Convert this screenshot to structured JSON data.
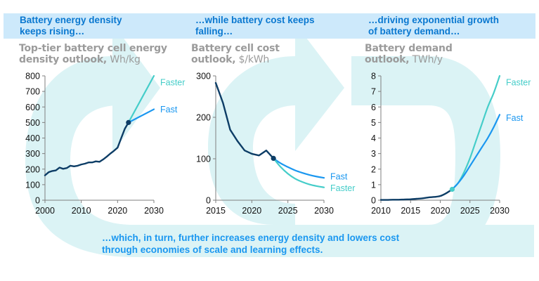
{
  "colors": {
    "banner_bg": "#cde9fb",
    "banner_text": "#0a78d0",
    "subtitle_text": "#9b9b9b",
    "historical_line": "#0d3d66",
    "fast_line": "#1a97f0",
    "faster_line": "#45cdc9",
    "swoosh": "#dbf3f5",
    "footer_text": "#1a97f0"
  },
  "banners": [
    {
      "line1": "Battery energy density",
      "line2": "keeps rising…"
    },
    {
      "line1": "…while battery cost keeps",
      "line2": "falling…"
    },
    {
      "line1": "…driving exponential growth",
      "line2": "of battery demand…"
    }
  ],
  "subtitles": [
    {
      "line1": "Top-tier battery cell energy",
      "line2_bold": "density outlook,",
      "unit": " Wh/kg"
    },
    {
      "line1": "Battery cell cost",
      "line2_bold": "outlook,",
      "unit": " $/kWh"
    },
    {
      "line1": "Battery demand",
      "line2_bold": "outlook,",
      "unit": " TWh/y"
    }
  ],
  "footer": {
    "line1": "…which, in turn, further increases energy density and lowers cost",
    "line2": "through economies of scale and learning effects."
  },
  "chart_data": [
    {
      "type": "line",
      "title": "Top-tier battery cell energy density outlook",
      "ylabel": "Wh/kg",
      "xlim": [
        2000,
        2030
      ],
      "ylim": [
        0,
        800
      ],
      "xticks": [
        2000,
        2010,
        2020,
        2030
      ],
      "yticks": [
        0,
        100,
        200,
        300,
        400,
        500,
        600,
        700,
        800
      ],
      "grid": false,
      "series": [
        {
          "name": "Historical",
          "color_key": "historical_line",
          "x": [
            2000,
            2001,
            2002,
            2003,
            2004,
            2005,
            2006,
            2007,
            2008,
            2009,
            2010,
            2011,
            2012,
            2013,
            2014,
            2015,
            2016,
            2017,
            2018,
            2019,
            2020,
            2021,
            2022,
            2023
          ],
          "y": [
            160,
            180,
            188,
            192,
            210,
            202,
            207,
            222,
            218,
            222,
            230,
            235,
            243,
            243,
            250,
            247,
            262,
            280,
            300,
            318,
            338,
            400,
            460,
            500
          ]
        },
        {
          "name": "Faster",
          "color_key": "faster_line",
          "x": [
            2023,
            2030
          ],
          "y": [
            500,
            800
          ]
        },
        {
          "name": "Fast",
          "color_key": "fast_line",
          "x": [
            2023,
            2030
          ],
          "y": [
            500,
            585
          ]
        }
      ],
      "marker": {
        "x": 2023,
        "y": 500
      },
      "annotations": [
        {
          "text": "Faster",
          "x": 2030,
          "y": 760,
          "color_key": "faster_line"
        },
        {
          "text": "Fast",
          "x": 2030,
          "y": 585,
          "color_key": "fast_line"
        }
      ]
    },
    {
      "type": "line",
      "title": "Battery cell cost outlook",
      "ylabel": "$/kWh",
      "xlim": [
        2015,
        2030
      ],
      "ylim": [
        0,
        300
      ],
      "xticks": [
        2015,
        2020,
        2025,
        2030
      ],
      "yticks": [
        0,
        100,
        200,
        300
      ],
      "grid": false,
      "series": [
        {
          "name": "Historical",
          "color_key": "historical_line",
          "x": [
            2015,
            2016,
            2017,
            2018,
            2019,
            2020,
            2021,
            2022,
            2023
          ],
          "y": [
            283,
            235,
            170,
            143,
            120,
            112,
            108,
            120,
            101
          ]
        },
        {
          "name": "Fast",
          "color_key": "fast_line",
          "x": [
            2023,
            2024,
            2025,
            2026,
            2027,
            2028,
            2029,
            2030
          ],
          "y": [
            101,
            89,
            80,
            72,
            66,
            61,
            57,
            54
          ]
        },
        {
          "name": "Faster",
          "color_key": "faster_line",
          "x": [
            2023,
            2024,
            2025,
            2026,
            2027,
            2028,
            2029,
            2030
          ],
          "y": [
            101,
            80,
            64,
            52,
            44,
            38,
            34,
            31
          ]
        }
      ],
      "marker": {
        "x": 2023,
        "y": 101
      },
      "annotations": [
        {
          "text": "Fast",
          "x": 2030,
          "y": 58,
          "color_key": "fast_line"
        },
        {
          "text": "Faster",
          "x": 2030,
          "y": 30,
          "color_key": "faster_line"
        }
      ]
    },
    {
      "type": "line",
      "title": "Battery demand outlook",
      "ylabel": "TWh/y",
      "xlim": [
        2010,
        2030
      ],
      "ylim": [
        0,
        8
      ],
      "xticks": [
        2010,
        2015,
        2020,
        2025,
        2030
      ],
      "yticks": [
        0,
        1,
        2,
        3,
        4,
        5,
        6,
        7,
        8
      ],
      "grid": false,
      "series": [
        {
          "name": "Historical",
          "color_key": "historical_line",
          "x": [
            2010,
            2011,
            2012,
            2013,
            2014,
            2015,
            2016,
            2017,
            2018,
            2019,
            2020,
            2021,
            2022
          ],
          "y": [
            0.02,
            0.02,
            0.03,
            0.03,
            0.05,
            0.06,
            0.09,
            0.12,
            0.18,
            0.21,
            0.27,
            0.45,
            0.7
          ]
        },
        {
          "name": "Faster",
          "color_key": "faster_line",
          "x": [
            2022,
            2023,
            2024,
            2025,
            2026,
            2027,
            2028,
            2029,
            2030
          ],
          "y": [
            0.7,
            1.1,
            1.8,
            2.7,
            3.8,
            4.9,
            6.0,
            6.9,
            8.0
          ]
        },
        {
          "name": "Fast",
          "color_key": "fast_line",
          "x": [
            2022,
            2023,
            2024,
            2025,
            2026,
            2027,
            2028,
            2029,
            2030
          ],
          "y": [
            0.7,
            1.1,
            1.6,
            2.2,
            2.8,
            3.4,
            4.0,
            4.7,
            5.5
          ]
        }
      ],
      "marker": {
        "x": 2022,
        "y": 0.7
      },
      "annotations": [
        {
          "text": "Faster",
          "x": 2030,
          "y": 7.6,
          "color_key": "faster_line"
        },
        {
          "text": "Fast",
          "x": 2030,
          "y": 5.3,
          "color_key": "fast_line"
        }
      ]
    }
  ]
}
